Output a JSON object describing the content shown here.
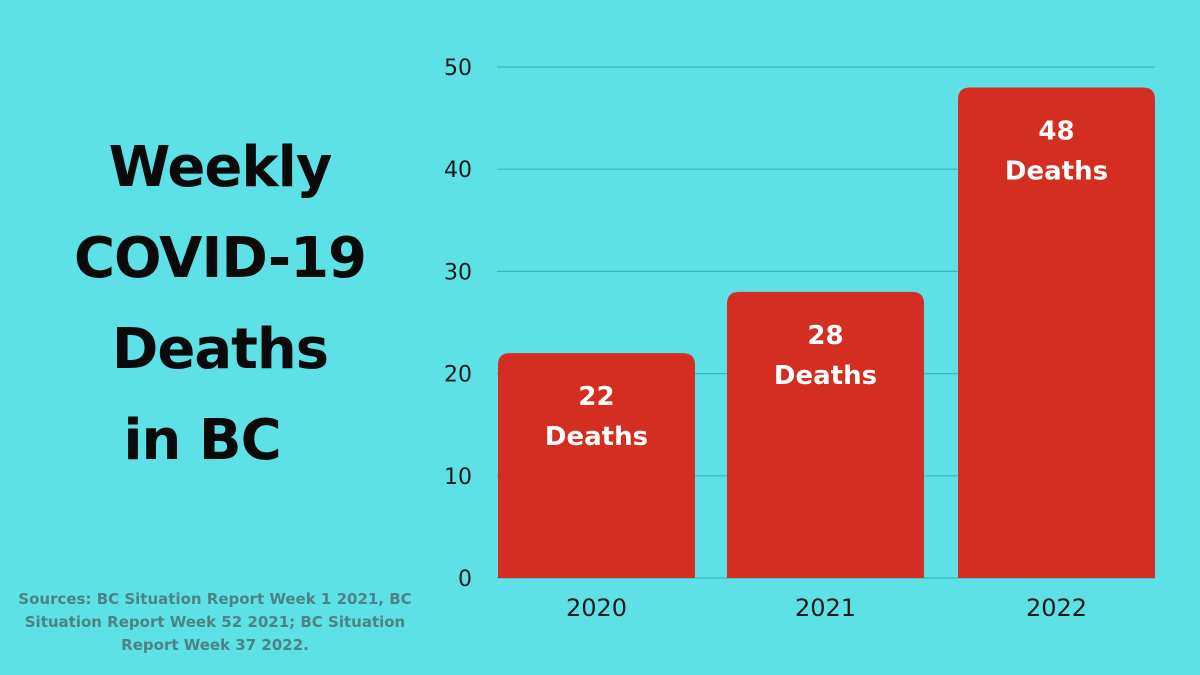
{
  "background_color": "#5ee1e6",
  "bar_color": "#d42e22",
  "title": {
    "lines": [
      "Weekly",
      "COVID-19",
      "Deaths",
      "in BC"
    ]
  },
  "sources": "Sources: BC Situation Report Week 1 2021, BC Situation Report Week 52 2021; BC Situation Report Week 37 2022.",
  "chart_data": {
    "type": "bar",
    "title": "Weekly COVID-19 Deaths in BC",
    "categories": [
      "2020",
      "2021",
      "2022"
    ],
    "values": [
      22,
      28,
      48
    ],
    "data_labels": [
      {
        "number": "22",
        "unit": "Deaths"
      },
      {
        "number": "28",
        "unit": "Deaths"
      },
      {
        "number": "48",
        "unit": "Deaths"
      }
    ],
    "yticks": [
      "0",
      "10",
      "20",
      "30",
      "40",
      "50"
    ],
    "ylim": [
      0,
      50
    ],
    "xlabel": "",
    "ylabel": "",
    "grid": true,
    "legend": "none"
  }
}
